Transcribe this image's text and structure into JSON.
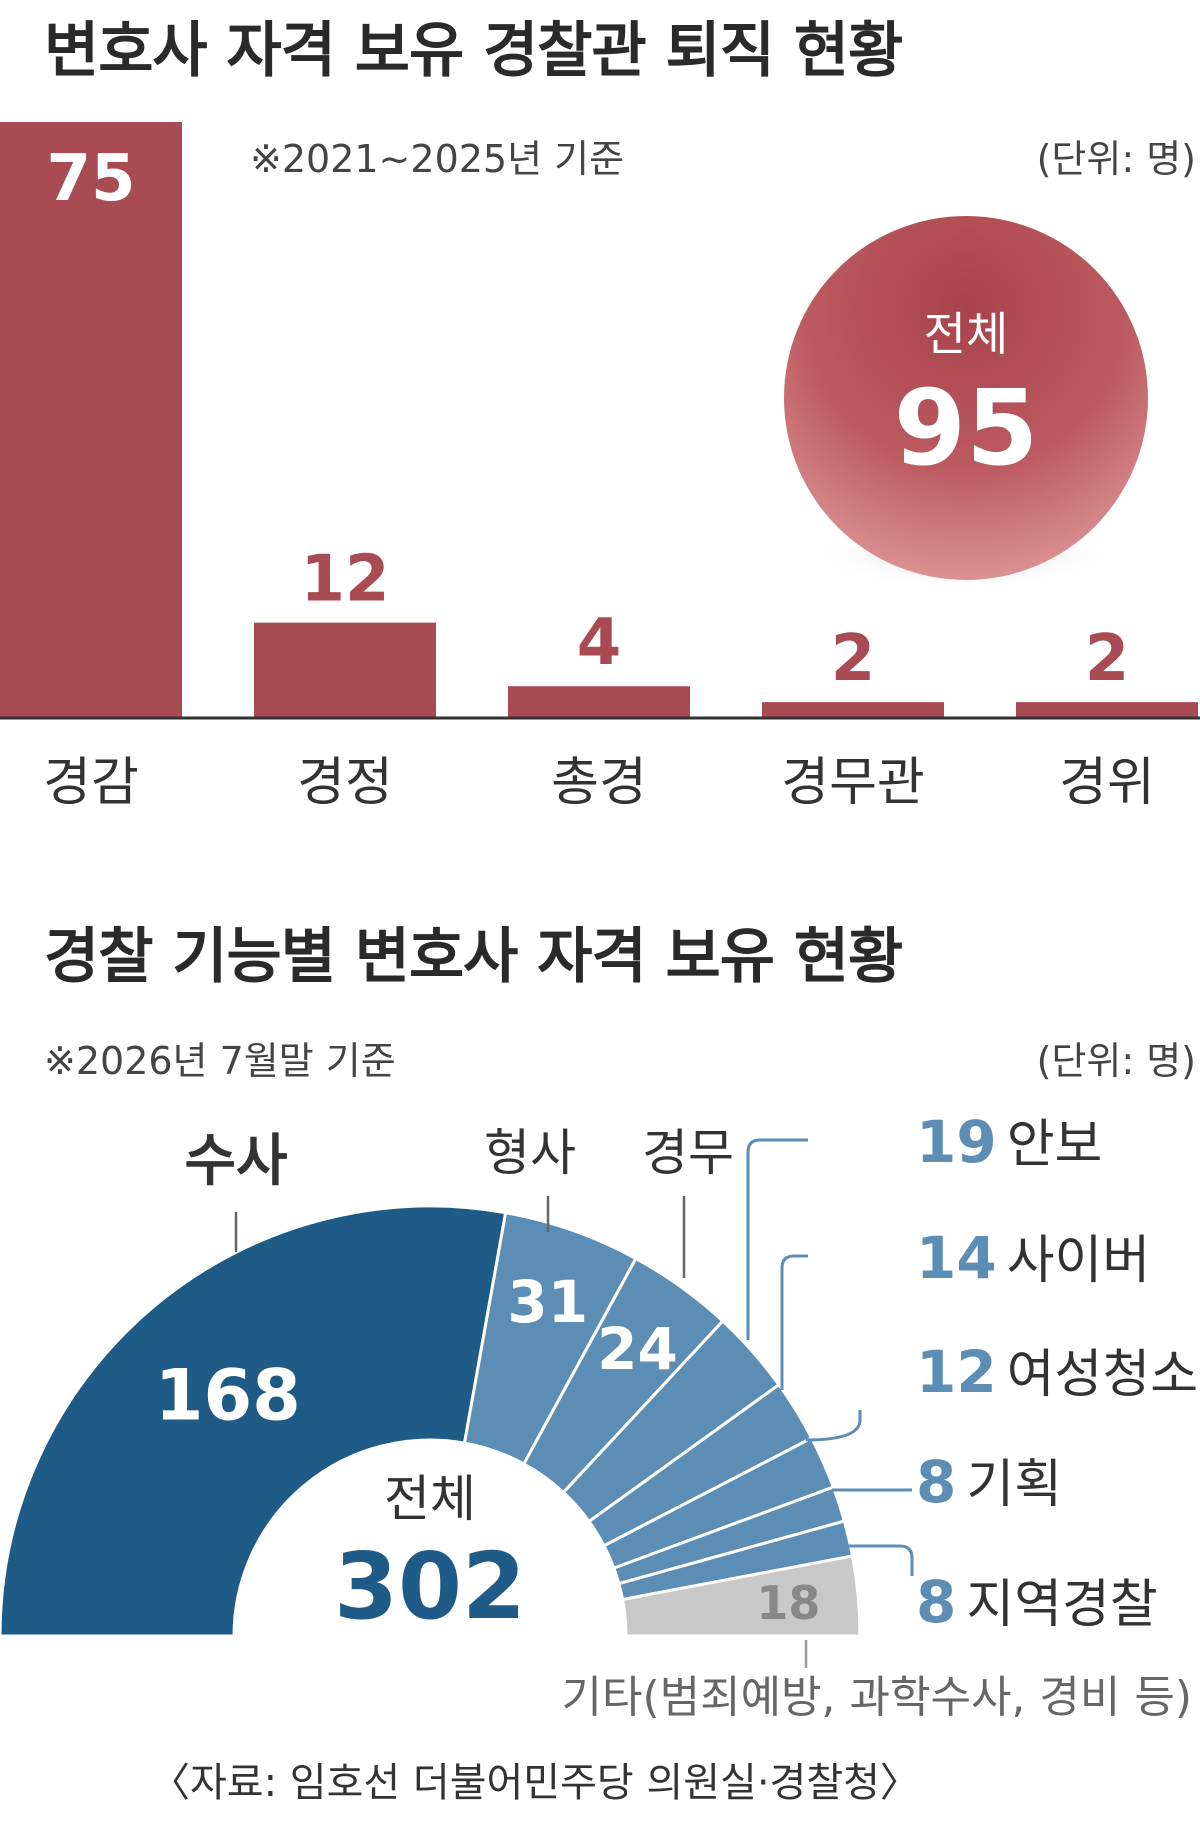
{
  "chart_data": [
    {
      "type": "bar",
      "title": "변호사 자격 보유 경찰관 퇴직 현황",
      "note": "※2021~2025년 기준",
      "unit": "(단위: 명)",
      "categories": [
        "경감",
        "경정",
        "총경",
        "경무관",
        "경위"
      ],
      "values": [
        75,
        12,
        4,
        2,
        2
      ],
      "total_label": "전체",
      "total_value": "95",
      "color": "#a94b52",
      "ylim": [
        0,
        75
      ],
      "grid": false
    },
    {
      "type": "pie",
      "subtype": "half-donut",
      "title": "경찰 기능별 변호사 자격 보유 현황",
      "note": "※2026년 7월말 기준",
      "unit": "(단위: 명)",
      "total_label": "전체",
      "total_value": "302",
      "slices": [
        {
          "label": "수사",
          "value": 168,
          "color": "#1f5b87"
        },
        {
          "label": "형사",
          "value": 31,
          "color": "#5b8db5"
        },
        {
          "label": "경무",
          "value": 24,
          "color": "#5b8db5"
        },
        {
          "label": "안보",
          "value": 19,
          "color": "#5b8db5"
        },
        {
          "label": "사이버",
          "value": 14,
          "color": "#5b8db5"
        },
        {
          "label": "여성청소년",
          "value": 12,
          "color": "#5b8db5"
        },
        {
          "label": "기획",
          "value": 8,
          "color": "#5b8db5"
        },
        {
          "label": "지역경찰",
          "value": 8,
          "color": "#5b8db5"
        },
        {
          "label": "기타(범죄예방, 과학수사, 경비 등)",
          "value": 18,
          "color": "#c8c8c8"
        }
      ]
    }
  ],
  "source": "〈자료: 임호선 더불어민주당 의원실·경찰청〉"
}
